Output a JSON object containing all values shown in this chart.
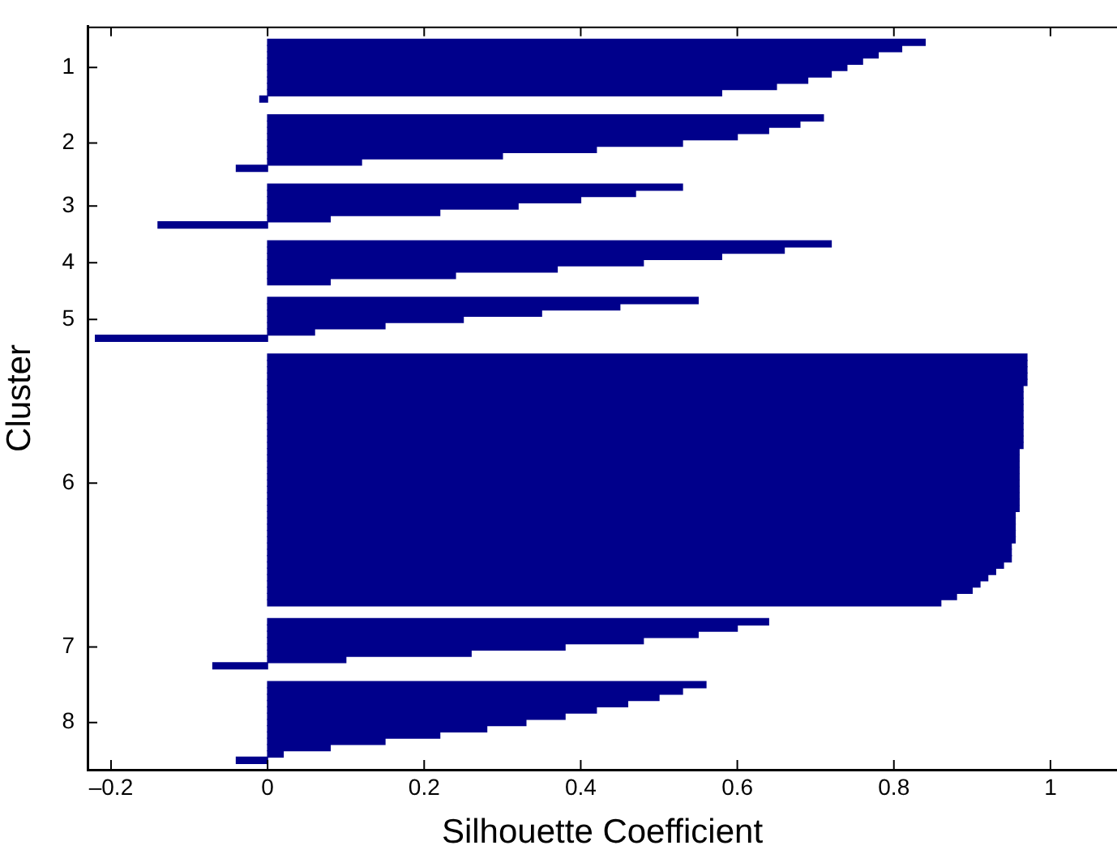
{
  "chart_data": {
    "type": "bar",
    "orientation": "horizontal",
    "xlabel": "Silhouette Coefficient",
    "ylabel": "Cluster",
    "color": "#00008b",
    "xlim": [
      -0.23,
      1.085
    ],
    "xticks": [
      {
        "value": -0.2,
        "label": "–0.2"
      },
      0,
      0.2,
      0.4,
      0.6,
      0.8,
      1
    ],
    "categories": [
      null,
      null,
      null,
      null,
      null,
      null,
      "1",
      null,
      null,
      null,
      null,
      null,
      null,
      null,
      null,
      null,
      null,
      null,
      "2",
      null,
      null,
      null,
      null,
      null,
      null,
      null,
      null,
      null,
      "3",
      null,
      null,
      null,
      null,
      null,
      null,
      null,
      null,
      "4",
      null,
      null,
      null,
      null,
      null,
      null,
      null,
      null,
      "5",
      null,
      null,
      null,
      null,
      null,
      null,
      null,
      null,
      null,
      null,
      null,
      null,
      null,
      null,
      null,
      null,
      null,
      null,
      null,
      null,
      null,
      null,
      null,
      null,
      null,
      "6",
      null,
      null,
      null,
      null,
      null,
      null,
      null,
      null,
      null,
      null,
      null,
      null,
      null,
      null,
      null,
      null,
      null,
      null,
      null,
      null,
      null,
      null,
      null,
      null,
      null,
      "7",
      null,
      null,
      null,
      null,
      null,
      null,
      null,
      null,
      null,
      null,
      null,
      "8",
      null,
      null,
      null,
      null,
      null,
      null,
      null
    ],
    "values": [
      null,
      null,
      0.84,
      0.81,
      0.78,
      0.76,
      0.74,
      0.72,
      0.69,
      0.65,
      0.58,
      -0.01,
      null,
      null,
      0.71,
      0.68,
      0.64,
      0.6,
      0.53,
      0.42,
      0.3,
      0.12,
      -0.04,
      null,
      null,
      0.53,
      0.47,
      0.4,
      0.32,
      0.22,
      0.08,
      -0.14,
      null,
      null,
      0.72,
      0.66,
      0.58,
      0.48,
      0.37,
      0.24,
      0.08,
      null,
      null,
      0.55,
      0.45,
      0.35,
      0.25,
      0.15,
      0.06,
      -0.22,
      null,
      null,
      0.97,
      0.97,
      0.97,
      0.97,
      0.97,
      0.965,
      0.965,
      0.965,
      0.965,
      0.965,
      0.965,
      0.965,
      0.965,
      0.965,
      0.965,
      0.96,
      0.96,
      0.96,
      0.96,
      0.96,
      0.96,
      0.96,
      0.96,
      0.96,
      0.96,
      0.955,
      0.955,
      0.955,
      0.955,
      0.955,
      0.95,
      0.95,
      0.95,
      0.94,
      0.93,
      0.92,
      0.91,
      0.9,
      0.88,
      0.86,
      null,
      null,
      0.64,
      0.6,
      0.55,
      0.48,
      0.38,
      0.26,
      0.1,
      -0.07,
      null,
      null,
      0.56,
      0.53,
      0.5,
      0.46,
      0.42,
      0.38,
      0.33,
      0.28,
      0.22,
      0.15,
      0.08,
      0.02,
      -0.04,
      null
    ]
  }
}
